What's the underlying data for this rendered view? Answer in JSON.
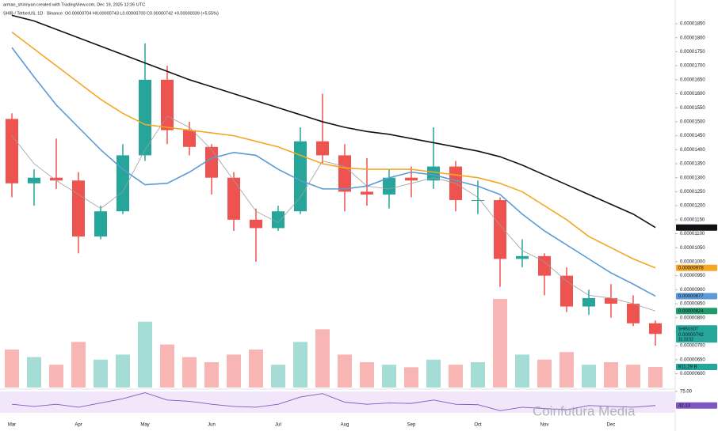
{
  "header": {
    "credit": "arman_shirinyan created with TradingView.com, Dec 19, 2025 12:26 UTC",
    "symbol": "SHIB / TetherUS, 1D · Binance",
    "ohlc": "O0.00000704 H0.00000743 L0.00000700 C0.00000742 +0.00000039 (+5.55%)"
  },
  "watermark": "Coinfutura Media",
  "chart_data": [
    {
      "type": "candlestick",
      "up_color": "#26a69a",
      "down_color": "#ef5350",
      "grid": false,
      "categories": [
        "Mar",
        null,
        null,
        "Apr",
        null,
        null,
        "May",
        null,
        null,
        "Jun",
        null,
        null,
        "Jul",
        null,
        null,
        "Aug",
        null,
        null,
        "Sep",
        null,
        null,
        "Oct",
        null,
        null,
        "Nov",
        null,
        null,
        "Dec",
        null,
        null
      ],
      "open": [
        1.51e-05,
        1.28e-05,
        1.3e-05,
        1.29e-05,
        1.09e-05,
        1.18e-05,
        1.38e-05,
        1.65e-05,
        1.47e-05,
        1.41e-05,
        1.3e-05,
        1.15e-05,
        1.12e-05,
        1.18e-05,
        1.43e-05,
        1.38e-05,
        1.25e-05,
        1.24e-05,
        1.3e-05,
        1.29e-05,
        1.34e-05,
        1.22e-05,
        1.22e-05,
        1.01e-05,
        1.02e-05,
        9.5e-06,
        8.4e-06,
        8.7e-06,
        8.5e-06,
        7.8e-06
      ],
      "high": [
        1.53e-05,
        1.33e-05,
        1.44e-05,
        1.32e-05,
        1.2e-05,
        1.42e-05,
        1.78e-05,
        1.7e-05,
        1.5e-05,
        1.42e-05,
        1.32e-05,
        1.19e-05,
        1.2e-05,
        1.48e-05,
        1.6e-05,
        1.42e-05,
        1.37e-05,
        1.33e-05,
        1.34e-05,
        1.48e-05,
        1.36e-05,
        1.29e-05,
        1.23e-05,
        1.08e-05,
        1.03e-05,
        9.8e-06,
        9e-06,
        9.2e-06,
        8.8e-06,
        7.9e-06
      ],
      "low": [
        1.23e-05,
        1.2e-05,
        1.26e-05,
        1.03e-05,
        1.08e-05,
        1.17e-05,
        1.36e-05,
        1.42e-05,
        1.38e-05,
        1.24e-05,
        1.11e-05,
        1e-05,
        1.11e-05,
        1.17e-05,
        1.35e-05,
        1.18e-05,
        1.2e-05,
        1.19e-05,
        1.23e-05,
        1.26e-05,
        1.18e-05,
        1.17e-05,
        9.1e-06,
        9.8e-06,
        8.8e-06,
        8.2e-06,
        8.1e-06,
        8e-06,
        7.7e-06,
        7e-06
      ],
      "close": [
        1.28e-05,
        1.3e-05,
        1.29e-05,
        1.09e-05,
        1.18e-05,
        1.38e-05,
        1.65e-05,
        1.47e-05,
        1.41e-05,
        1.3e-05,
        1.15e-05,
        1.12e-05,
        1.18e-05,
        1.43e-05,
        1.38e-05,
        1.25e-05,
        1.24e-05,
        1.3e-05,
        1.29e-05,
        1.34e-05,
        1.22e-05,
        1.22e-05,
        1.01e-05,
        1.02e-05,
        9.5e-06,
        8.4e-06,
        8.7e-06,
        8.5e-06,
        7.8e-06,
        7.42e-06
      ],
      "series": [
        {
          "color": "#9e9e9e",
          "values": [
            1.45e-05,
            1.35e-05,
            1.29e-05,
            1.24e-05,
            1.19e-05,
            1.25e-05,
            1.4e-05,
            1.52e-05,
            1.48e-05,
            1.4e-05,
            1.29e-05,
            1.18e-05,
            1.14e-05,
            1.23e-05,
            1.36e-05,
            1.34e-05,
            1.27e-05,
            1.26e-05,
            1.28e-05,
            1.3e-05,
            1.28e-05,
            1.23e-05,
            1.13e-05,
            1.04e-05,
            1e-05,
            9.3e-06,
            8.8e-06,
            8.7e-06,
            8.5e-06,
            8.24e-06
          ]
        },
        {
          "color": "#5b9bd5",
          "values": [
            1.765e-05,
            1.66e-05,
            1.56e-05,
            1.48e-05,
            1.4e-05,
            1.33e-05,
            1.275e-05,
            1.28e-05,
            1.32e-05,
            1.37e-05,
            1.39e-05,
            1.38e-05,
            1.33e-05,
            1.29e-05,
            1.26e-05,
            1.26e-05,
            1.27e-05,
            1.3e-05,
            1.32e-05,
            1.31e-05,
            1.29e-05,
            1.27e-05,
            1.24e-05,
            1.17e-05,
            1.11e-05,
            1.06e-05,
            1.01e-05,
            9.6e-06,
            9.2e-06,
            8.77e-06
          ]
        },
        {
          "color": "#f5a623",
          "values": [
            1.82e-05,
            1.76e-05,
            1.7e-05,
            1.64e-05,
            1.58e-05,
            1.53e-05,
            1.49e-05,
            1.48e-05,
            1.47e-05,
            1.46e-05,
            1.45e-05,
            1.43e-05,
            1.41e-05,
            1.38e-05,
            1.35e-05,
            1.335e-05,
            1.33e-05,
            1.33e-05,
            1.33e-05,
            1.32e-05,
            1.31e-05,
            1.3e-05,
            1.28e-05,
            1.25e-05,
            1.2e-05,
            1.15e-05,
            1.09e-05,
            1.05e-05,
            1.01e-05,
            9.78e-06
          ]
        },
        {
          "color": "#111111",
          "values": [
            1.88e-05,
            1.86e-05,
            1.83e-05,
            1.8e-05,
            1.77e-05,
            1.74e-05,
            1.71e-05,
            1.68e-05,
            1.65e-05,
            1.625e-05,
            1.6e-05,
            1.575e-05,
            1.55e-05,
            1.525e-05,
            1.5e-05,
            1.48e-05,
            1.465e-05,
            1.455e-05,
            1.44e-05,
            1.425e-05,
            1.41e-05,
            1.395e-05,
            1.375e-05,
            1.345e-05,
            1.31e-05,
            1.275e-05,
            1.24e-05,
            1.205e-05,
            1.17e-05,
            1.122e-05
          ]
        }
      ],
      "ylim": [
        5.8e-06,
        1.88e-05
      ],
      "yticks": [
        {
          "value": 1.85e-05,
          "label": "0.00001850"
        },
        {
          "value": 1.8e-05,
          "label": "0.00001800"
        },
        {
          "value": 1.75e-05,
          "label": "0.00001750"
        },
        {
          "value": 1.7e-05,
          "label": "0.00001700"
        },
        {
          "value": 1.65e-05,
          "label": "0.00001650"
        },
        {
          "value": 1.6e-05,
          "label": "0.00001600"
        },
        {
          "value": 1.55e-05,
          "label": "0.00001550"
        },
        {
          "value": 1.5e-05,
          "label": "0.00001500"
        },
        {
          "value": 1.45e-05,
          "label": "0.00001450"
        },
        {
          "value": 1.4e-05,
          "label": "0.00001400"
        },
        {
          "value": 1.35e-05,
          "label": "0.00001350"
        },
        {
          "value": 1.3e-05,
          "label": "0.00001300"
        },
        {
          "value": 1.25e-05,
          "label": "0.00001250"
        },
        {
          "value": 1.2e-05,
          "label": "0.00001200"
        },
        {
          "value": 1.15e-05,
          "label": "0.00001150"
        },
        {
          "value": 1.1e-05,
          "label": "0.00001100"
        },
        {
          "value": 1.05e-05,
          "label": "0.00001050"
        },
        {
          "value": 1e-05,
          "label": "0.00001000"
        },
        {
          "value": 9.5e-06,
          "label": "0.00000950"
        },
        {
          "value": 9e-06,
          "label": "0.00000900"
        },
        {
          "value": 8.5e-06,
          "label": "0.00000850"
        },
        {
          "value": 8e-06,
          "label": "0.00000800"
        },
        {
          "value": 7.5e-06,
          "label": "0.00000750"
        },
        {
          "value": 7e-06,
          "label": "0.00000700"
        },
        {
          "value": 6.5e-06,
          "label": "0.00000650"
        },
        {
          "value": 6e-06,
          "label": "0.00000600"
        }
      ],
      "badges": [
        {
          "value": 1.122e-05,
          "label": "0.00001122",
          "color": "#111111"
        },
        {
          "value": 9.78e-06,
          "label": "0.00000978",
          "color": "#f5a623"
        },
        {
          "value": 8.77e-06,
          "label": "0.00000877",
          "color": "#5b9bd5"
        },
        {
          "value": 8.24e-06,
          "label": "0.00000824",
          "color": "#1e9c6c"
        }
      ],
      "price_badge": {
        "symbol": "SHIBUSDT",
        "value": 7.42e-06,
        "label": "0.00000742",
        "countdown": "11:33:52",
        "color": "#26a69a"
      }
    },
    {
      "type": "bar",
      "values": [
        1500,
        1200,
        900,
        1800,
        1100,
        1300,
        2600,
        1700,
        1200,
        1000,
        1300,
        1500,
        900,
        1800,
        2300,
        1300,
        1000,
        900,
        800,
        1100,
        900,
        1000,
        3500,
        1300,
        1100,
        1400,
        900,
        1000,
        900,
        811.29
      ],
      "ylim": [
        0,
        4000
      ],
      "last_label": "811.29 B",
      "up_color": "#8fd3cb",
      "down_color": "#f5a3a1"
    },
    {
      "type": "line",
      "color": "#7e57c2",
      "band_color": "#f1e6fa",
      "values": [
        45,
        40,
        45,
        38,
        48,
        58,
        72,
        55,
        52,
        45,
        40,
        38,
        45,
        62,
        70,
        50,
        45,
        48,
        47,
        55,
        45,
        44,
        30,
        38,
        35,
        32,
        42,
        40,
        38,
        42.13
      ],
      "ylim": [
        0,
        100
      ],
      "yticks": [
        {
          "value": 75,
          "label": "75.00"
        }
      ],
      "band": [
        25,
        75
      ]
    }
  ]
}
